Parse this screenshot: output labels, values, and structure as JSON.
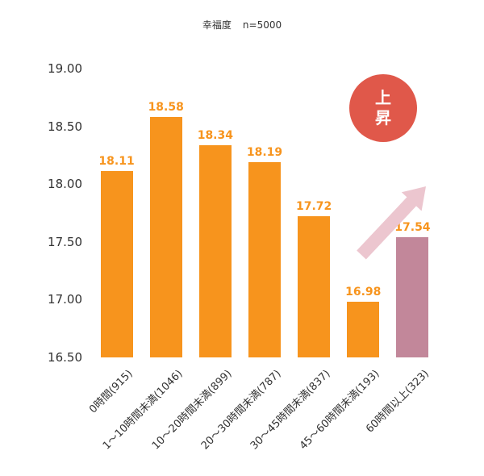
{
  "header": {
    "title": "幸福度",
    "sample": "n=5000"
  },
  "badge": {
    "line1": "上",
    "line2": "昇"
  },
  "chart_data": {
    "type": "bar",
    "title": "幸福度 n=5000",
    "categories": [
      "0時間(915)",
      "1〜10時間未満(1046)",
      "10〜20時間未満(899)",
      "20〜30時間未満(787)",
      "30〜45時間未満(837)",
      "45〜60時間未満(193)",
      "60時間以上(323)"
    ],
    "values": [
      18.11,
      18.58,
      18.34,
      18.19,
      17.72,
      16.98,
      17.54
    ],
    "value_labels": [
      "18.11",
      "18.58",
      "18.34",
      "18.19",
      "17.72",
      "16.98",
      "17.54"
    ],
    "bar_colors": [
      "#f7941d",
      "#f7941d",
      "#f7941d",
      "#f7941d",
      "#f7941d",
      "#f7941d",
      "#c2879a"
    ],
    "value_label_color": "#f7941d",
    "ylim": [
      16.5,
      19.0
    ],
    "ytick_labels": [
      "19.00",
      "18.50",
      "18.00",
      "17.50",
      "17.00",
      "16.50"
    ],
    "grid": false,
    "legend": false,
    "annotations": {
      "badge_text": "上昇",
      "arrow_direction": "up-right"
    }
  },
  "colors": {
    "bar_orange": "#f7941d",
    "bar_pink": "#c2879a",
    "badge_red": "#e0584a",
    "arrow_pink": "#ecc6cf",
    "axis_text": "#333333"
  }
}
